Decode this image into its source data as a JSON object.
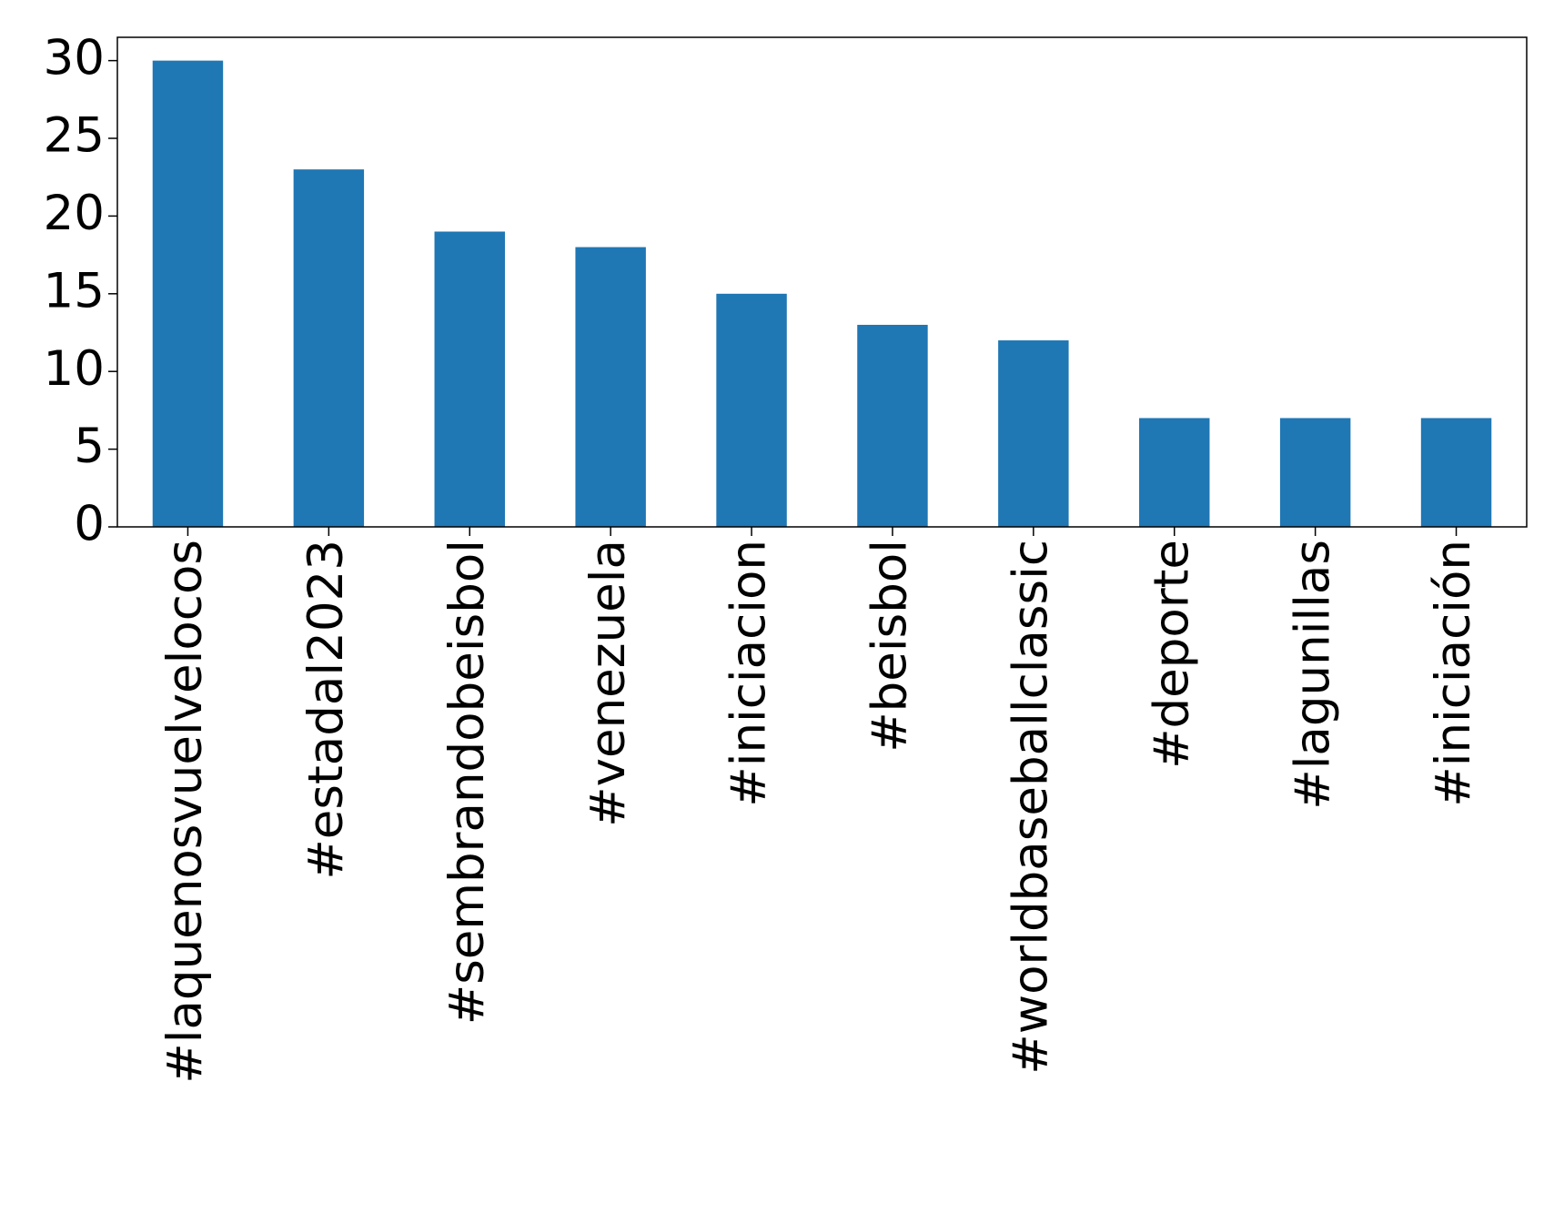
{
  "chart_data": {
    "type": "bar",
    "categories": [
      "#laquenosvuelvelocos",
      "#estadal2023",
      "#sembrandobeisbol",
      "#venezuela",
      "#iniciacion",
      "#beisbol",
      "#worldbaseballclassic",
      "#deporte",
      "#lagunillas",
      "#iniciación"
    ],
    "values": [
      30,
      23,
      19,
      18,
      15,
      13,
      12,
      7,
      7,
      7
    ],
    "color": "#1f77b4",
    "ylim": [
      0,
      31.5
    ],
    "yticks": [
      0,
      5,
      10,
      15,
      20,
      25,
      30
    ],
    "grid": false
  }
}
